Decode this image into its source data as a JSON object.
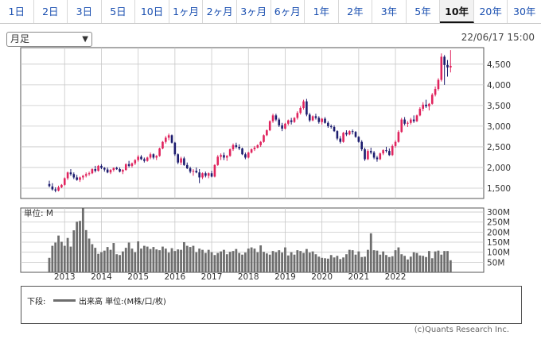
{
  "tabs": [
    "1日",
    "2日",
    "3日",
    "5日",
    "10日",
    "1ヶ月",
    "2ヶ月",
    "3ヶ月",
    "6ヶ月",
    "1年",
    "2年",
    "3年",
    "5年",
    "10年",
    "20年",
    "30年"
  ],
  "active_tab": "10年",
  "period_select": {
    "value": "月足"
  },
  "timestamp": "22/06/17 15:00",
  "volume_unit_label": "単位: M",
  "legend": {
    "lower_label": "下段:",
    "volume_text": "出来高 単位:(M株/口/枚)"
  },
  "copyright": "(c)Quants Research Inc.",
  "colors": {
    "up": "#e0245e",
    "down": "#1c1c6e",
    "volume": "#6e6e6e",
    "grid": "#c8c8c8",
    "active_tab": "#111111",
    "link": "#1a4fb0"
  },
  "chart_data": {
    "type": "candlestick",
    "price_axis": {
      "ticks": [
        1500,
        2000,
        2500,
        3000,
        3500,
        4000,
        4500
      ],
      "tick_labels": [
        "1,500",
        "2,000",
        "2,500",
        "3,000",
        "3,500",
        "4,000",
        "4,500"
      ],
      "ylim": [
        1250,
        4900
      ]
    },
    "volume_axis": {
      "ticks": [
        50,
        100,
        150,
        200,
        250,
        300
      ],
      "tick_labels": [
        "50M",
        "100M",
        "150M",
        "200M",
        "250M",
        "300M"
      ],
      "ylim": [
        0,
        320
      ]
    },
    "years": [
      "2013",
      "2014",
      "2015",
      "2016",
      "2017",
      "2018",
      "2019",
      "2020",
      "2021",
      "2022"
    ],
    "start": "2012-08",
    "candles": [
      [
        1600,
        1680,
        1520,
        1550
      ],
      [
        1540,
        1620,
        1440,
        1470
      ],
      [
        1470,
        1520,
        1400,
        1440
      ],
      [
        1440,
        1560,
        1420,
        1520
      ],
      [
        1520,
        1600,
        1500,
        1580
      ],
      [
        1580,
        1760,
        1560,
        1740
      ],
      [
        1740,
        1900,
        1700,
        1880
      ],
      [
        1880,
        1960,
        1800,
        1840
      ],
      [
        1840,
        1880,
        1720,
        1760
      ],
      [
        1760,
        1820,
        1680,
        1700
      ],
      [
        1700,
        1780,
        1650,
        1760
      ],
      [
        1760,
        1820,
        1700,
        1800
      ],
      [
        1800,
        1880,
        1760,
        1840
      ],
      [
        1840,
        1900,
        1800,
        1860
      ],
      [
        1860,
        1980,
        1840,
        1960
      ],
      [
        1960,
        2040,
        1880,
        1920
      ],
      [
        1920,
        2060,
        1900,
        2040
      ],
      [
        2040,
        2080,
        1960,
        1990
      ],
      [
        1990,
        2010,
        1900,
        1950
      ],
      [
        1950,
        2000,
        1860,
        1880
      ],
      [
        1880,
        1960,
        1840,
        1940
      ],
      [
        1940,
        2000,
        1900,
        1990
      ],
      [
        1990,
        2020,
        1940,
        1960
      ],
      [
        1960,
        2000,
        1880,
        1900
      ],
      [
        1900,
        1960,
        1840,
        1940
      ],
      [
        1940,
        2100,
        1920,
        2080
      ],
      [
        2080,
        2160,
        2000,
        2040
      ],
      [
        2040,
        2120,
        2000,
        2100
      ],
      [
        2100,
        2200,
        2060,
        2180
      ],
      [
        2180,
        2300,
        2140,
        2260
      ],
      [
        2260,
        2300,
        2180,
        2200
      ],
      [
        2200,
        2240,
        2120,
        2160
      ],
      [
        2160,
        2260,
        2140,
        2240
      ],
      [
        2240,
        2360,
        2200,
        2320
      ],
      [
        2320,
        2340,
        2200,
        2240
      ],
      [
        2240,
        2300,
        2180,
        2280
      ],
      [
        2280,
        2480,
        2260,
        2460
      ],
      [
        2460,
        2640,
        2440,
        2620
      ],
      [
        2620,
        2760,
        2580,
        2720
      ],
      [
        2720,
        2820,
        2660,
        2780
      ],
      [
        2780,
        2800,
        2580,
        2600
      ],
      [
        2600,
        2620,
        2280,
        2320
      ],
      [
        2320,
        2340,
        2080,
        2120
      ],
      [
        2120,
        2260,
        2060,
        2220
      ],
      [
        2220,
        2260,
        2040,
        2060
      ],
      [
        2060,
        2120,
        1960,
        1980
      ],
      [
        1980,
        2020,
        1860,
        1900
      ],
      [
        1900,
        1960,
        1800,
        1920
      ],
      [
        1920,
        2000,
        1860,
        1880
      ],
      [
        1880,
        1960,
        1620,
        1760
      ],
      [
        1760,
        1880,
        1720,
        1860
      ],
      [
        1860,
        1900,
        1760,
        1800
      ],
      [
        1800,
        1880,
        1740,
        1860
      ],
      [
        1860,
        1920,
        1760,
        1780
      ],
      [
        1780,
        2080,
        1760,
        2060
      ],
      [
        2060,
        2300,
        2040,
        2260
      ],
      [
        2260,
        2340,
        2180,
        2300
      ],
      [
        2300,
        2360,
        2180,
        2240
      ],
      [
        2240,
        2300,
        2160,
        2280
      ],
      [
        2280,
        2460,
        2260,
        2440
      ],
      [
        2440,
        2580,
        2400,
        2540
      ],
      [
        2540,
        2600,
        2460,
        2500
      ],
      [
        2500,
        2560,
        2420,
        2460
      ],
      [
        2460,
        2480,
        2300,
        2320
      ],
      [
        2320,
        2360,
        2200,
        2240
      ],
      [
        2240,
        2380,
        2220,
        2360
      ],
      [
        2360,
        2460,
        2340,
        2440
      ],
      [
        2440,
        2520,
        2400,
        2480
      ],
      [
        2480,
        2560,
        2460,
        2540
      ],
      [
        2540,
        2640,
        2500,
        2620
      ],
      [
        2620,
        2800,
        2600,
        2780
      ],
      [
        2780,
        2920,
        2760,
        2900
      ],
      [
        2900,
        3140,
        2880,
        3120
      ],
      [
        3120,
        3300,
        3080,
        3260
      ],
      [
        3260,
        3300,
        3120,
        3160
      ],
      [
        3160,
        3200,
        2980,
        3020
      ],
      [
        3020,
        3080,
        2880,
        2940
      ],
      [
        2940,
        3080,
        2920,
        3060
      ],
      [
        3060,
        3160,
        3020,
        3140
      ],
      [
        3140,
        3200,
        3040,
        3100
      ],
      [
        3100,
        3220,
        3080,
        3200
      ],
      [
        3200,
        3360,
        3160,
        3320
      ],
      [
        3320,
        3480,
        3280,
        3440
      ],
      [
        3440,
        3640,
        3400,
        3600
      ],
      [
        3600,
        3660,
        3240,
        3280
      ],
      [
        3280,
        3320,
        3100,
        3140
      ],
      [
        3140,
        3260,
        3120,
        3240
      ],
      [
        3240,
        3300,
        3160,
        3200
      ],
      [
        3200,
        3240,
        3060,
        3100
      ],
      [
        3100,
        3200,
        3040,
        3180
      ],
      [
        3180,
        3220,
        3060,
        3080
      ],
      [
        3080,
        3120,
        2960,
        3000
      ],
      [
        3000,
        3040,
        2940,
        2980
      ],
      [
        2980,
        3020,
        2860,
        2880
      ],
      [
        2880,
        2900,
        2660,
        2700
      ],
      [
        2700,
        2760,
        2580,
        2620
      ],
      [
        2620,
        2860,
        2600,
        2840
      ],
      [
        2840,
        2900,
        2760,
        2800
      ],
      [
        2800,
        2900,
        2780,
        2880
      ],
      [
        2880,
        2920,
        2800,
        2860
      ],
      [
        2860,
        2880,
        2720,
        2740
      ],
      [
        2740,
        2760,
        2600,
        2620
      ],
      [
        2620,
        2660,
        2400,
        2440
      ],
      [
        2440,
        2480,
        2160,
        2200
      ],
      [
        2200,
        2440,
        2180,
        2400
      ],
      [
        2400,
        2480,
        2320,
        2360
      ],
      [
        2360,
        2400,
        2200,
        2240
      ],
      [
        2240,
        2280,
        2140,
        2200
      ],
      [
        2200,
        2360,
        2180,
        2340
      ],
      [
        2340,
        2440,
        2300,
        2420
      ],
      [
        2420,
        2500,
        2360,
        2400
      ],
      [
        2400,
        2460,
        2280,
        2300
      ],
      [
        2300,
        2560,
        2280,
        2520
      ],
      [
        2520,
        2660,
        2480,
        2620
      ],
      [
        2620,
        2900,
        2600,
        2860
      ],
      [
        2860,
        3200,
        2840,
        3160
      ],
      [
        3160,
        3220,
        3020,
        3060
      ],
      [
        3060,
        3120,
        2980,
        3080
      ],
      [
        3080,
        3200,
        3040,
        3160
      ],
      [
        3160,
        3260,
        3080,
        3120
      ],
      [
        3120,
        3280,
        3100,
        3260
      ],
      [
        3260,
        3460,
        3240,
        3420
      ],
      [
        3420,
        3580,
        3360,
        3520
      ],
      [
        3520,
        3640,
        3440,
        3480
      ],
      [
        3480,
        3560,
        3380,
        3540
      ],
      [
        3540,
        3800,
        3520,
        3760
      ],
      [
        3760,
        3960,
        3720,
        3900
      ],
      [
        3900,
        4160,
        3860,
        4120
      ],
      [
        4120,
        4760,
        4080,
        4680
      ],
      [
        4680,
        4720,
        4000,
        4480
      ],
      [
        4480,
        4600,
        4200,
        4420
      ],
      [
        4420,
        4840,
        4300,
        4460
      ]
    ],
    "volume": [
      72,
      132,
      148,
      183,
      152,
      132,
      171,
      128,
      209,
      252,
      256,
      318,
      210,
      168,
      140,
      122,
      92,
      100,
      108,
      126,
      112,
      146,
      90,
      86,
      104,
      122,
      148,
      118,
      100,
      154,
      118,
      132,
      128,
      116,
      126,
      114,
      110,
      128,
      118,
      98,
      120,
      106,
      114,
      112,
      150,
      132,
      126,
      132,
      100,
      118,
      112,
      96,
      112,
      100,
      86,
      96,
      104,
      112,
      90,
      102,
      106,
      116,
      96,
      88,
      98,
      118,
      124,
      118,
      100,
      134,
      102,
      94,
      88,
      106,
      100,
      110,
      98,
      124,
      84,
      100,
      88,
      110,
      106,
      96,
      116,
      98,
      104,
      90,
      78,
      72,
      70,
      68,
      86,
      74,
      82,
      66,
      74,
      90,
      112,
      110,
      88,
      104,
      76,
      78,
      112,
      194,
      110,
      108,
      88,
      104,
      86,
      76,
      80,
      110,
      124,
      90,
      82,
      64,
      78,
      100,
      96,
      84,
      82,
      76,
      106,
      70,
      104,
      108,
      88,
      106,
      106,
      60
    ]
  }
}
